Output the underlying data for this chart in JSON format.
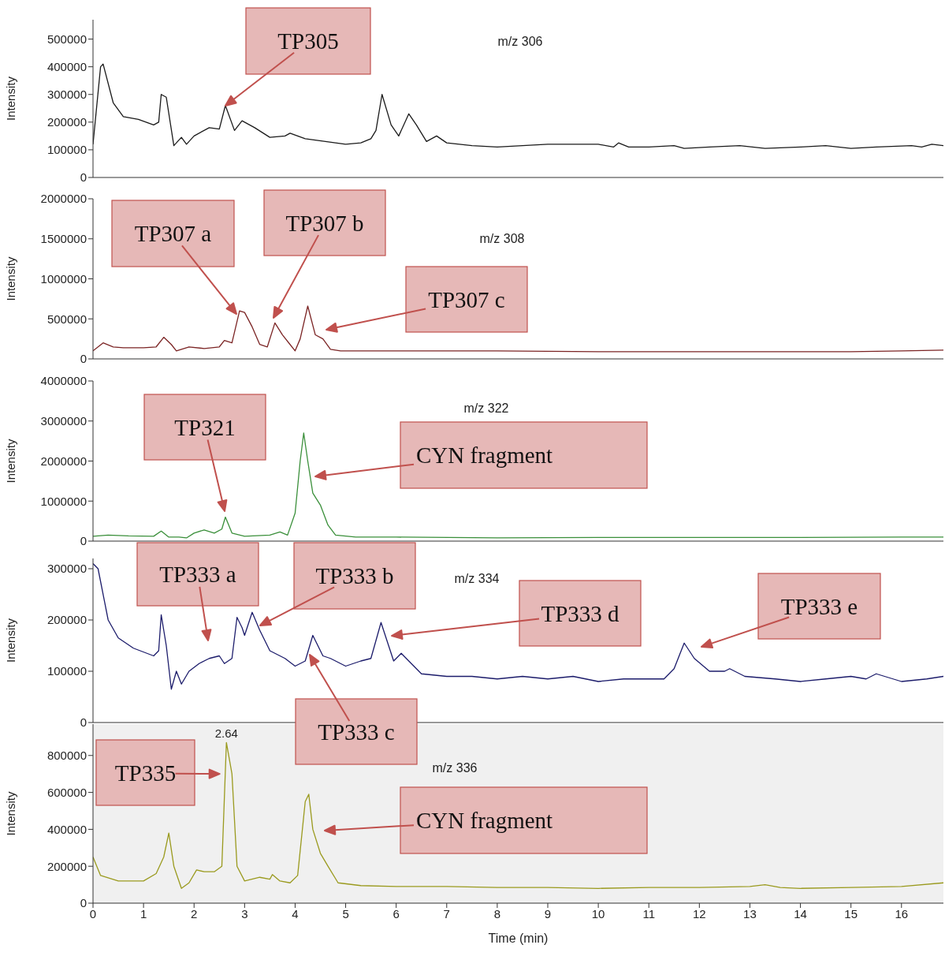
{
  "chart_data": [
    {
      "type": "line",
      "title": "m/z 306",
      "ylabel": "Intensity",
      "color": "#1a1a1a",
      "xlim": [
        0,
        16.83
      ],
      "xticks": [
        0,
        1,
        2,
        3,
        4,
        5,
        6,
        7,
        8,
        9,
        10,
        11,
        12,
        13,
        14,
        15,
        16
      ],
      "ylim": [
        0,
        570000
      ],
      "yticks": [
        0,
        100000,
        200000,
        300000,
        400000,
        500000
      ],
      "tick_labels": "y",
      "x": [
        0,
        0.15,
        0.2,
        0.4,
        0.6,
        0.9,
        1.2,
        1.3,
        1.35,
        1.45,
        1.6,
        1.75,
        1.85,
        2.0,
        2.3,
        2.5,
        2.62,
        2.8,
        2.95,
        3.2,
        3.5,
        3.8,
        3.9,
        4.2,
        4.6,
        5.0,
        5.3,
        5.5,
        5.6,
        5.72,
        5.9,
        6.05,
        6.25,
        6.4,
        6.6,
        6.8,
        7.0,
        7.5,
        8,
        8.5,
        9,
        9.5,
        10,
        10.3,
        10.4,
        10.6,
        11,
        11.5,
        11.7,
        12.2,
        12.8,
        13.3,
        14,
        14.5,
        15,
        15.5,
        16.2,
        16.4,
        16.6,
        16.83
      ],
      "values": [
        120000,
        400000,
        410000,
        270000,
        220000,
        210000,
        190000,
        200000,
        300000,
        290000,
        115000,
        145000,
        120000,
        150000,
        180000,
        175000,
        260000,
        170000,
        205000,
        180000,
        145000,
        150000,
        160000,
        140000,
        130000,
        120000,
        125000,
        140000,
        170000,
        300000,
        190000,
        150000,
        230000,
        190000,
        130000,
        150000,
        125000,
        115000,
        110000,
        115000,
        120000,
        120000,
        120000,
        110000,
        125000,
        110000,
        110000,
        115000,
        105000,
        110000,
        115000,
        105000,
        110000,
        115000,
        105000,
        110000,
        115000,
        110000,
        120000,
        115000
      ],
      "annotations": [
        "TP305"
      ]
    },
    {
      "type": "line",
      "title": "m/z 308",
      "ylabel": "Intensity",
      "color": "#7b2424",
      "xlim": [
        0,
        16.83
      ],
      "xticks": [
        0,
        1,
        2,
        3,
        4,
        5,
        6,
        7,
        8,
        9,
        10,
        11,
        12,
        13,
        14,
        15,
        16
      ],
      "ylim": [
        0,
        2000000
      ],
      "yticks": [
        0,
        500000,
        1000000,
        1500000,
        2000000
      ],
      "tick_labels": "y",
      "x": [
        0,
        0.2,
        0.4,
        0.6,
        1.0,
        1.25,
        1.4,
        1.55,
        1.65,
        1.9,
        2.2,
        2.5,
        2.6,
        2.75,
        2.9,
        3.0,
        3.15,
        3.3,
        3.45,
        3.6,
        3.75,
        3.9,
        4.0,
        4.1,
        4.25,
        4.4,
        4.55,
        4.7,
        4.9,
        6,
        8,
        10,
        11,
        12,
        13,
        14,
        15,
        16,
        16.83
      ],
      "values": [
        100000,
        200000,
        150000,
        140000,
        140000,
        150000,
        270000,
        180000,
        100000,
        150000,
        130000,
        150000,
        230000,
        200000,
        600000,
        580000,
        400000,
        180000,
        150000,
        450000,
        300000,
        180000,
        100000,
        250000,
        660000,
        300000,
        250000,
        120000,
        100000,
        100000,
        100000,
        90000,
        90000,
        90000,
        90000,
        90000,
        90000,
        100000,
        110000
      ],
      "annotations": [
        "TP307 a",
        "TP307 b",
        "TP307 c"
      ]
    },
    {
      "type": "line",
      "title": "m/z 322",
      "ylabel": "Intensity",
      "color": "#3a8f3a",
      "xlim": [
        0,
        16.83
      ],
      "xticks": [
        0,
        1,
        2,
        3,
        4,
        5,
        6,
        7,
        8,
        9,
        10,
        11,
        12,
        13,
        14,
        15,
        16
      ],
      "ylim": [
        0,
        4000000
      ],
      "yticks": [
        0,
        1000000,
        2000000,
        3000000,
        4000000
      ],
      "tick_labels": "y",
      "x": [
        0,
        0.3,
        0.7,
        1.2,
        1.35,
        1.5,
        1.7,
        1.85,
        2.0,
        2.2,
        2.4,
        2.55,
        2.62,
        2.75,
        3.0,
        3.5,
        3.7,
        3.85,
        4.0,
        4.1,
        4.17,
        4.25,
        4.35,
        4.5,
        4.65,
        4.8,
        5.2,
        6,
        8,
        10,
        12,
        14,
        16,
        16.83
      ],
      "values": [
        120000,
        150000,
        130000,
        120000,
        250000,
        100000,
        100000,
        80000,
        200000,
        280000,
        200000,
        300000,
        600000,
        200000,
        120000,
        150000,
        230000,
        150000,
        700000,
        2000000,
        2700000,
        2000000,
        1200000,
        900000,
        400000,
        150000,
        100000,
        100000,
        80000,
        90000,
        90000,
        90000,
        100000,
        100000
      ],
      "annotations": [
        "TP321",
        "CYN fragment"
      ]
    },
    {
      "type": "line",
      "title": "m/z 334",
      "ylabel": "Intensity",
      "color": "#1c1c6b",
      "xlim": [
        0,
        16.83
      ],
      "xticks": [
        0,
        1,
        2,
        3,
        4,
        5,
        6,
        7,
        8,
        9,
        10,
        11,
        12,
        13,
        14,
        15,
        16
      ],
      "ylim": [
        0,
        320000
      ],
      "yticks": [
        0,
        100000,
        200000,
        300000
      ],
      "tick_labels": "y",
      "x": [
        0,
        0.1,
        0.3,
        0.5,
        0.8,
        1.2,
        1.3,
        1.35,
        1.45,
        1.55,
        1.65,
        1.75,
        1.9,
        2.1,
        2.3,
        2.5,
        2.6,
        2.75,
        2.85,
        2.95,
        3.0,
        3.1,
        3.15,
        3.3,
        3.5,
        3.8,
        4.0,
        4.2,
        4.35,
        4.55,
        4.7,
        5.0,
        5.3,
        5.5,
        5.7,
        5.85,
        5.95,
        6.1,
        6.3,
        6.5,
        7,
        7.5,
        8,
        8.5,
        9,
        9.5,
        10,
        10.5,
        11,
        11.3,
        11.5,
        11.7,
        11.9,
        12.2,
        12.5,
        12.6,
        12.9,
        13.5,
        14,
        14.5,
        15,
        15.3,
        15.5,
        16,
        16.5,
        16.83
      ],
      "values": [
        310000,
        300000,
        200000,
        165000,
        145000,
        130000,
        140000,
        210000,
        150000,
        65000,
        100000,
        75000,
        100000,
        115000,
        125000,
        130000,
        115000,
        125000,
        205000,
        185000,
        170000,
        200000,
        215000,
        180000,
        140000,
        125000,
        110000,
        120000,
        170000,
        130000,
        125000,
        110000,
        120000,
        125000,
        195000,
        150000,
        120000,
        135000,
        115000,
        95000,
        90000,
        90000,
        85000,
        90000,
        85000,
        90000,
        80000,
        85000,
        85000,
        85000,
        105000,
        155000,
        125000,
        100000,
        100000,
        105000,
        90000,
        85000,
        80000,
        85000,
        90000,
        85000,
        95000,
        80000,
        85000,
        90000
      ],
      "annotations": [
        "TP333 a",
        "TP333 b",
        "TP333 c",
        "TP333 d",
        "TP333 e"
      ]
    },
    {
      "type": "line",
      "title": "m/z 336",
      "ylabel": "Intensity",
      "xlabel": "Time (min)",
      "color": "#9a9a1e",
      "xlim": [
        0,
        16.83
      ],
      "xticks": [
        0,
        1,
        2,
        3,
        4,
        5,
        6,
        7,
        8,
        9,
        10,
        11,
        12,
        13,
        14,
        15,
        16
      ],
      "ylim": [
        0,
        970000
      ],
      "yticks": [
        0,
        200000,
        400000,
        600000,
        800000
      ],
      "x": [
        0,
        0.15,
        0.5,
        1.0,
        1.25,
        1.4,
        1.5,
        1.6,
        1.75,
        1.9,
        2.05,
        2.2,
        2.4,
        2.55,
        2.64,
        2.75,
        2.85,
        3.0,
        3.3,
        3.5,
        3.55,
        3.7,
        3.9,
        4.05,
        4.2,
        4.27,
        4.35,
        4.5,
        4.65,
        4.85,
        5.3,
        6,
        7,
        8,
        9,
        10,
        11,
        12,
        13,
        13.3,
        13.6,
        14,
        15,
        16,
        16.83
      ],
      "values": [
        250000,
        150000,
        120000,
        120000,
        160000,
        250000,
        380000,
        200000,
        80000,
        110000,
        180000,
        170000,
        170000,
        200000,
        870000,
        700000,
        200000,
        120000,
        140000,
        130000,
        155000,
        120000,
        110000,
        150000,
        550000,
        590000,
        400000,
        270000,
        200000,
        110000,
        95000,
        90000,
        90000,
        85000,
        85000,
        80000,
        85000,
        85000,
        90000,
        100000,
        85000,
        80000,
        85000,
        90000,
        110000
      ],
      "annotations": [
        {
          "text": "2.64",
          "x": 2.64,
          "y": 870000
        },
        {
          "text": "TP335",
          "x": 2.6,
          "y": 700000
        },
        "CYN fragment"
      ]
    }
  ]
}
